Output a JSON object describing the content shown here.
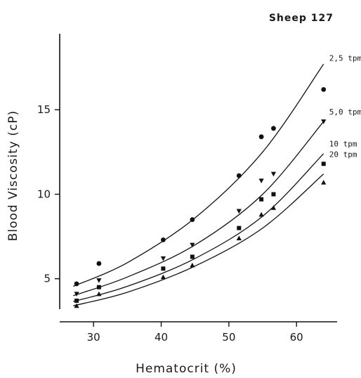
{
  "chart_data": {
    "type": "scatter",
    "title": "Sheep 127",
    "xlabel": "Hematocrit (%)",
    "ylabel": "Blood Viscosity (cP)",
    "xlim": [
      25,
      66
    ],
    "ylim": [
      3.2,
      19.5
    ],
    "x_ticks": [
      30,
      40,
      50,
      60
    ],
    "y_ticks": [
      5,
      10,
      15
    ],
    "grid": false,
    "legend": "labels at right end of fitted curves",
    "series": [
      {
        "name": "2,5 tpm",
        "marker": "circle",
        "points": [
          [
            27.5,
            4.7
          ],
          [
            30.8,
            5.9
          ],
          [
            40.3,
            7.3
          ],
          [
            44.6,
            8.5
          ],
          [
            51.5,
            11.1
          ],
          [
            54.8,
            13.4
          ],
          [
            56.6,
            13.9
          ],
          [
            64.0,
            16.2
          ]
        ],
        "fit": [
          [
            27,
            4.55
          ],
          [
            35,
            5.95
          ],
          [
            45,
            8.6
          ],
          [
            55,
            12.5
          ],
          [
            64,
            17.7
          ]
        ]
      },
      {
        "name": "5,0 tpm",
        "marker": "triangle-down",
        "points": [
          [
            27.5,
            4.1
          ],
          [
            30.8,
            4.9
          ],
          [
            40.3,
            6.2
          ],
          [
            44.6,
            7.0
          ],
          [
            51.5,
            9.0
          ],
          [
            54.8,
            10.8
          ],
          [
            56.6,
            11.2
          ],
          [
            64.0,
            14.3
          ]
        ],
        "fit": [
          [
            27,
            4.0
          ],
          [
            35,
            5.1
          ],
          [
            45,
            7.0
          ],
          [
            55,
            10.0
          ],
          [
            64,
            14.3
          ]
        ]
      },
      {
        "name": "10 tpm",
        "marker": "square",
        "points": [
          [
            27.5,
            3.7
          ],
          [
            30.8,
            4.5
          ],
          [
            40.3,
            5.6
          ],
          [
            44.6,
            6.3
          ],
          [
            51.5,
            8.0
          ],
          [
            54.8,
            9.7
          ],
          [
            56.6,
            10.0
          ],
          [
            64.0,
            11.8
          ]
        ],
        "fit": [
          [
            27,
            3.65
          ],
          [
            35,
            4.55
          ],
          [
            45,
            6.2
          ],
          [
            55,
            8.7
          ],
          [
            64,
            12.4
          ]
        ]
      },
      {
        "name": "20 tpm",
        "marker": "triangle-up",
        "points": [
          [
            27.5,
            3.4
          ],
          [
            30.8,
            4.1
          ],
          [
            40.3,
            5.1
          ],
          [
            44.6,
            5.8
          ],
          [
            51.5,
            7.4
          ],
          [
            54.8,
            8.8
          ],
          [
            56.6,
            9.2
          ],
          [
            64.0,
            10.7
          ]
        ],
        "fit": [
          [
            27,
            3.4
          ],
          [
            35,
            4.2
          ],
          [
            45,
            5.75
          ],
          [
            55,
            8.0
          ],
          [
            64,
            11.2
          ]
        ]
      }
    ]
  }
}
